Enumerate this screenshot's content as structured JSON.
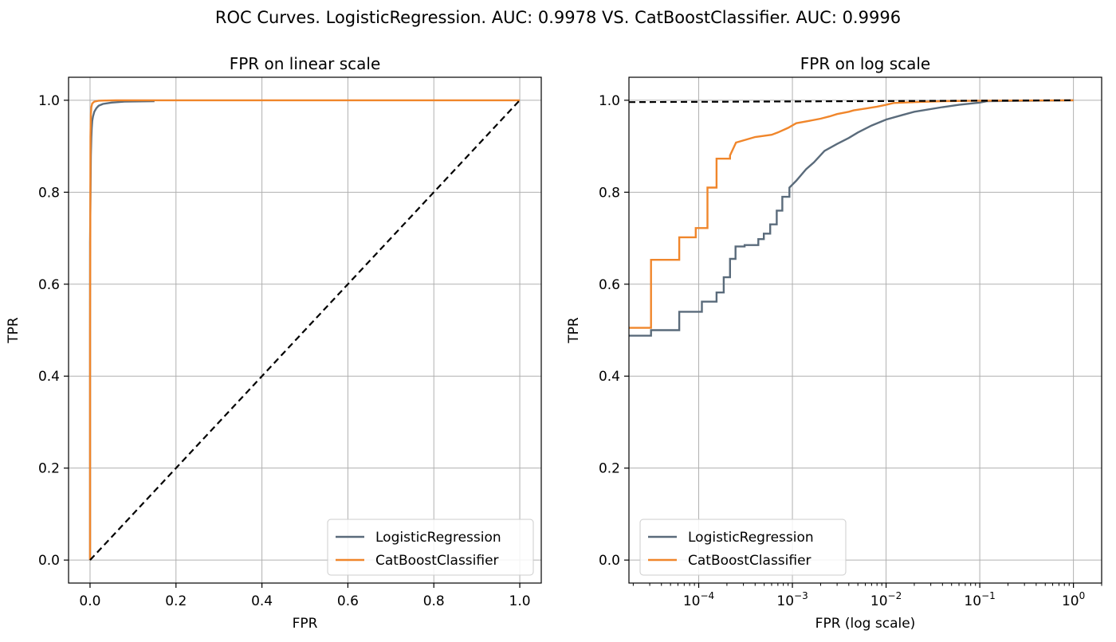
{
  "suptitle": "ROC Curves. LogisticRegression. AUC: 0.9978 VS. CatBoostClassifier. AUC: 0.9996",
  "colors": {
    "logistic": "#5a6b7b",
    "catboost": "#f0862b",
    "diagonal": "#000000",
    "grid": "#b0b0b0"
  },
  "chart_data": [
    {
      "type": "line",
      "title": "FPR on linear scale",
      "xlabel": "FPR",
      "ylabel": "TPR",
      "xscale": "linear",
      "xlim": [
        -0.05,
        1.05
      ],
      "ylim": [
        -0.05,
        1.05
      ],
      "xticks": [
        0.0,
        0.2,
        0.4,
        0.6,
        0.8,
        1.0
      ],
      "xtick_labels": [
        "0.0",
        "0.2",
        "0.4",
        "0.6",
        "0.8",
        "1.0"
      ],
      "yticks": [
        0.0,
        0.2,
        0.4,
        0.6,
        0.8,
        1.0
      ],
      "ytick_labels": [
        "0.0",
        "0.2",
        "0.4",
        "0.6",
        "0.8",
        "1.0"
      ],
      "grid": true,
      "legend": "lower-right",
      "series": [
        {
          "name": "LogisticRegression",
          "color": "#5a6b7b",
          "x": [
            0,
            0,
            0.002,
            0.003,
            0.004,
            0.005,
            0.007,
            0.01,
            0.015,
            0.02,
            0.03,
            0.05,
            0.08,
            0.15
          ],
          "y": [
            0,
            0.69,
            0.88,
            0.92,
            0.94,
            0.955,
            0.965,
            0.975,
            0.983,
            0.988,
            0.992,
            0.995,
            0.997,
            0.998
          ]
        },
        {
          "name": "CatBoostClassifier",
          "color": "#f0862b",
          "x": [
            0,
            0,
            0.001,
            0.002,
            0.003,
            0.005,
            0.01,
            0.02,
            0.06,
            1.0
          ],
          "y": [
            0,
            0.5,
            0.92,
            0.97,
            0.985,
            0.993,
            0.997,
            0.999,
            1.0,
            1.0
          ]
        },
        {
          "name": "",
          "style": "dashed",
          "color": "#000000",
          "x": [
            0,
            1
          ],
          "y": [
            0,
            1
          ]
        }
      ]
    },
    {
      "type": "line",
      "title": "FPR on log scale",
      "xlabel": "FPR (log scale)",
      "ylabel": "TPR",
      "xscale": "log",
      "xlim": [
        1.8e-05,
        2.0
      ],
      "ylim": [
        -0.05,
        1.05
      ],
      "xticks": [
        0.0001,
        0.001,
        0.01,
        0.1,
        1
      ],
      "xtick_labels": [
        "10",
        "10",
        "10",
        "10",
        "10"
      ],
      "xtick_exponents": [
        "−4",
        "−3",
        "−2",
        "−1",
        "0"
      ],
      "yticks": [
        0.0,
        0.2,
        0.4,
        0.6,
        0.8,
        1.0
      ],
      "ytick_labels": [
        "0.0",
        "0.2",
        "0.4",
        "0.6",
        "0.8",
        "1.0"
      ],
      "grid": true,
      "legend": "lower-left",
      "series": [
        {
          "name": "LogisticRegression",
          "color": "#5a6b7b",
          "x": [
            1.8e-05,
            3.1e-05,
            3.1e-05,
            6.2e-05,
            6.2e-05,
            0.000108,
            0.000108,
            0.000155,
            0.000155,
            0.000185,
            0.000185,
            0.000216,
            0.000216,
            0.000247,
            0.000247,
            0.000309,
            0.000309,
            0.000433,
            0.000433,
            0.000495,
            0.000495,
            0.00058,
            0.00058,
            0.00068,
            0.00068,
            0.00078,
            0.00078,
            0.00093,
            0.00093,
            0.0011,
            0.0014,
            0.0017,
            0.0022,
            0.003,
            0.004,
            0.005,
            0.007,
            0.01,
            0.015,
            0.02,
            0.04,
            0.06,
            0.1,
            0.12,
            1.0
          ],
          "y": [
            0.488,
            0.488,
            0.5,
            0.5,
            0.54,
            0.54,
            0.562,
            0.562,
            0.582,
            0.582,
            0.615,
            0.615,
            0.655,
            0.655,
            0.682,
            0.682,
            0.685,
            0.685,
            0.698,
            0.698,
            0.71,
            0.71,
            0.73,
            0.73,
            0.76,
            0.76,
            0.79,
            0.79,
            0.81,
            0.825,
            0.85,
            0.865,
            0.89,
            0.905,
            0.918,
            0.93,
            0.945,
            0.958,
            0.968,
            0.975,
            0.985,
            0.99,
            0.995,
            0.998,
            1.0
          ]
        },
        {
          "name": "CatBoostClassifier",
          "color": "#f0862b",
          "x": [
            1.8e-05,
            3.1e-05,
            3.1e-05,
            6.2e-05,
            6.2e-05,
            9.3e-05,
            9.3e-05,
            0.000124,
            0.000124,
            0.000155,
            0.000155,
            0.000216,
            0.000216,
            0.00025,
            0.0004,
            0.0006,
            0.0007,
            0.0009,
            0.0011,
            0.0015,
            0.002,
            0.0025,
            0.003,
            0.004,
            0.0045,
            0.006,
            0.008,
            0.01,
            0.012,
            0.02,
            0.04,
            0.1,
            1.0
          ],
          "y": [
            0.505,
            0.505,
            0.653,
            0.653,
            0.702,
            0.702,
            0.722,
            0.722,
            0.81,
            0.81,
            0.873,
            0.873,
            0.88,
            0.908,
            0.92,
            0.925,
            0.93,
            0.94,
            0.95,
            0.955,
            0.96,
            0.965,
            0.97,
            0.975,
            0.978,
            0.982,
            0.986,
            0.99,
            0.994,
            0.996,
            0.998,
            0.999,
            1.0
          ]
        },
        {
          "name": "",
          "style": "dashed",
          "color": "#000000",
          "x": [
            1.8e-05,
            1.0
          ],
          "y": [
            0.996,
            1.0
          ]
        }
      ]
    }
  ]
}
